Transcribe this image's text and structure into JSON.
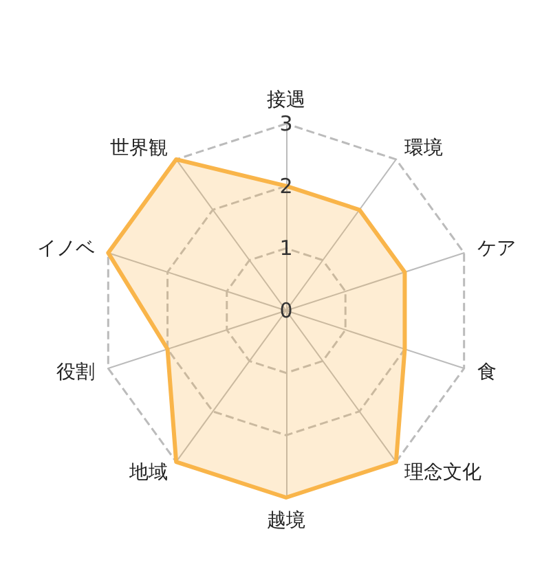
{
  "chart_data": {
    "type": "radar",
    "categories": [
      "接遇",
      "環境",
      "ケア",
      "食",
      "理念文化",
      "越境",
      "地域",
      "役割",
      "イノベ",
      "世界観"
    ],
    "series": [
      {
        "color": "#f9b54a",
        "values": [
          2,
          2,
          2,
          2,
          3,
          3,
          3,
          2,
          3,
          3
        ]
      }
    ],
    "ylim": [
      0,
      3
    ],
    "yticks": [
      0,
      1,
      2,
      3
    ],
    "grid": true,
    "marker": "none",
    "line_style": "solid"
  }
}
